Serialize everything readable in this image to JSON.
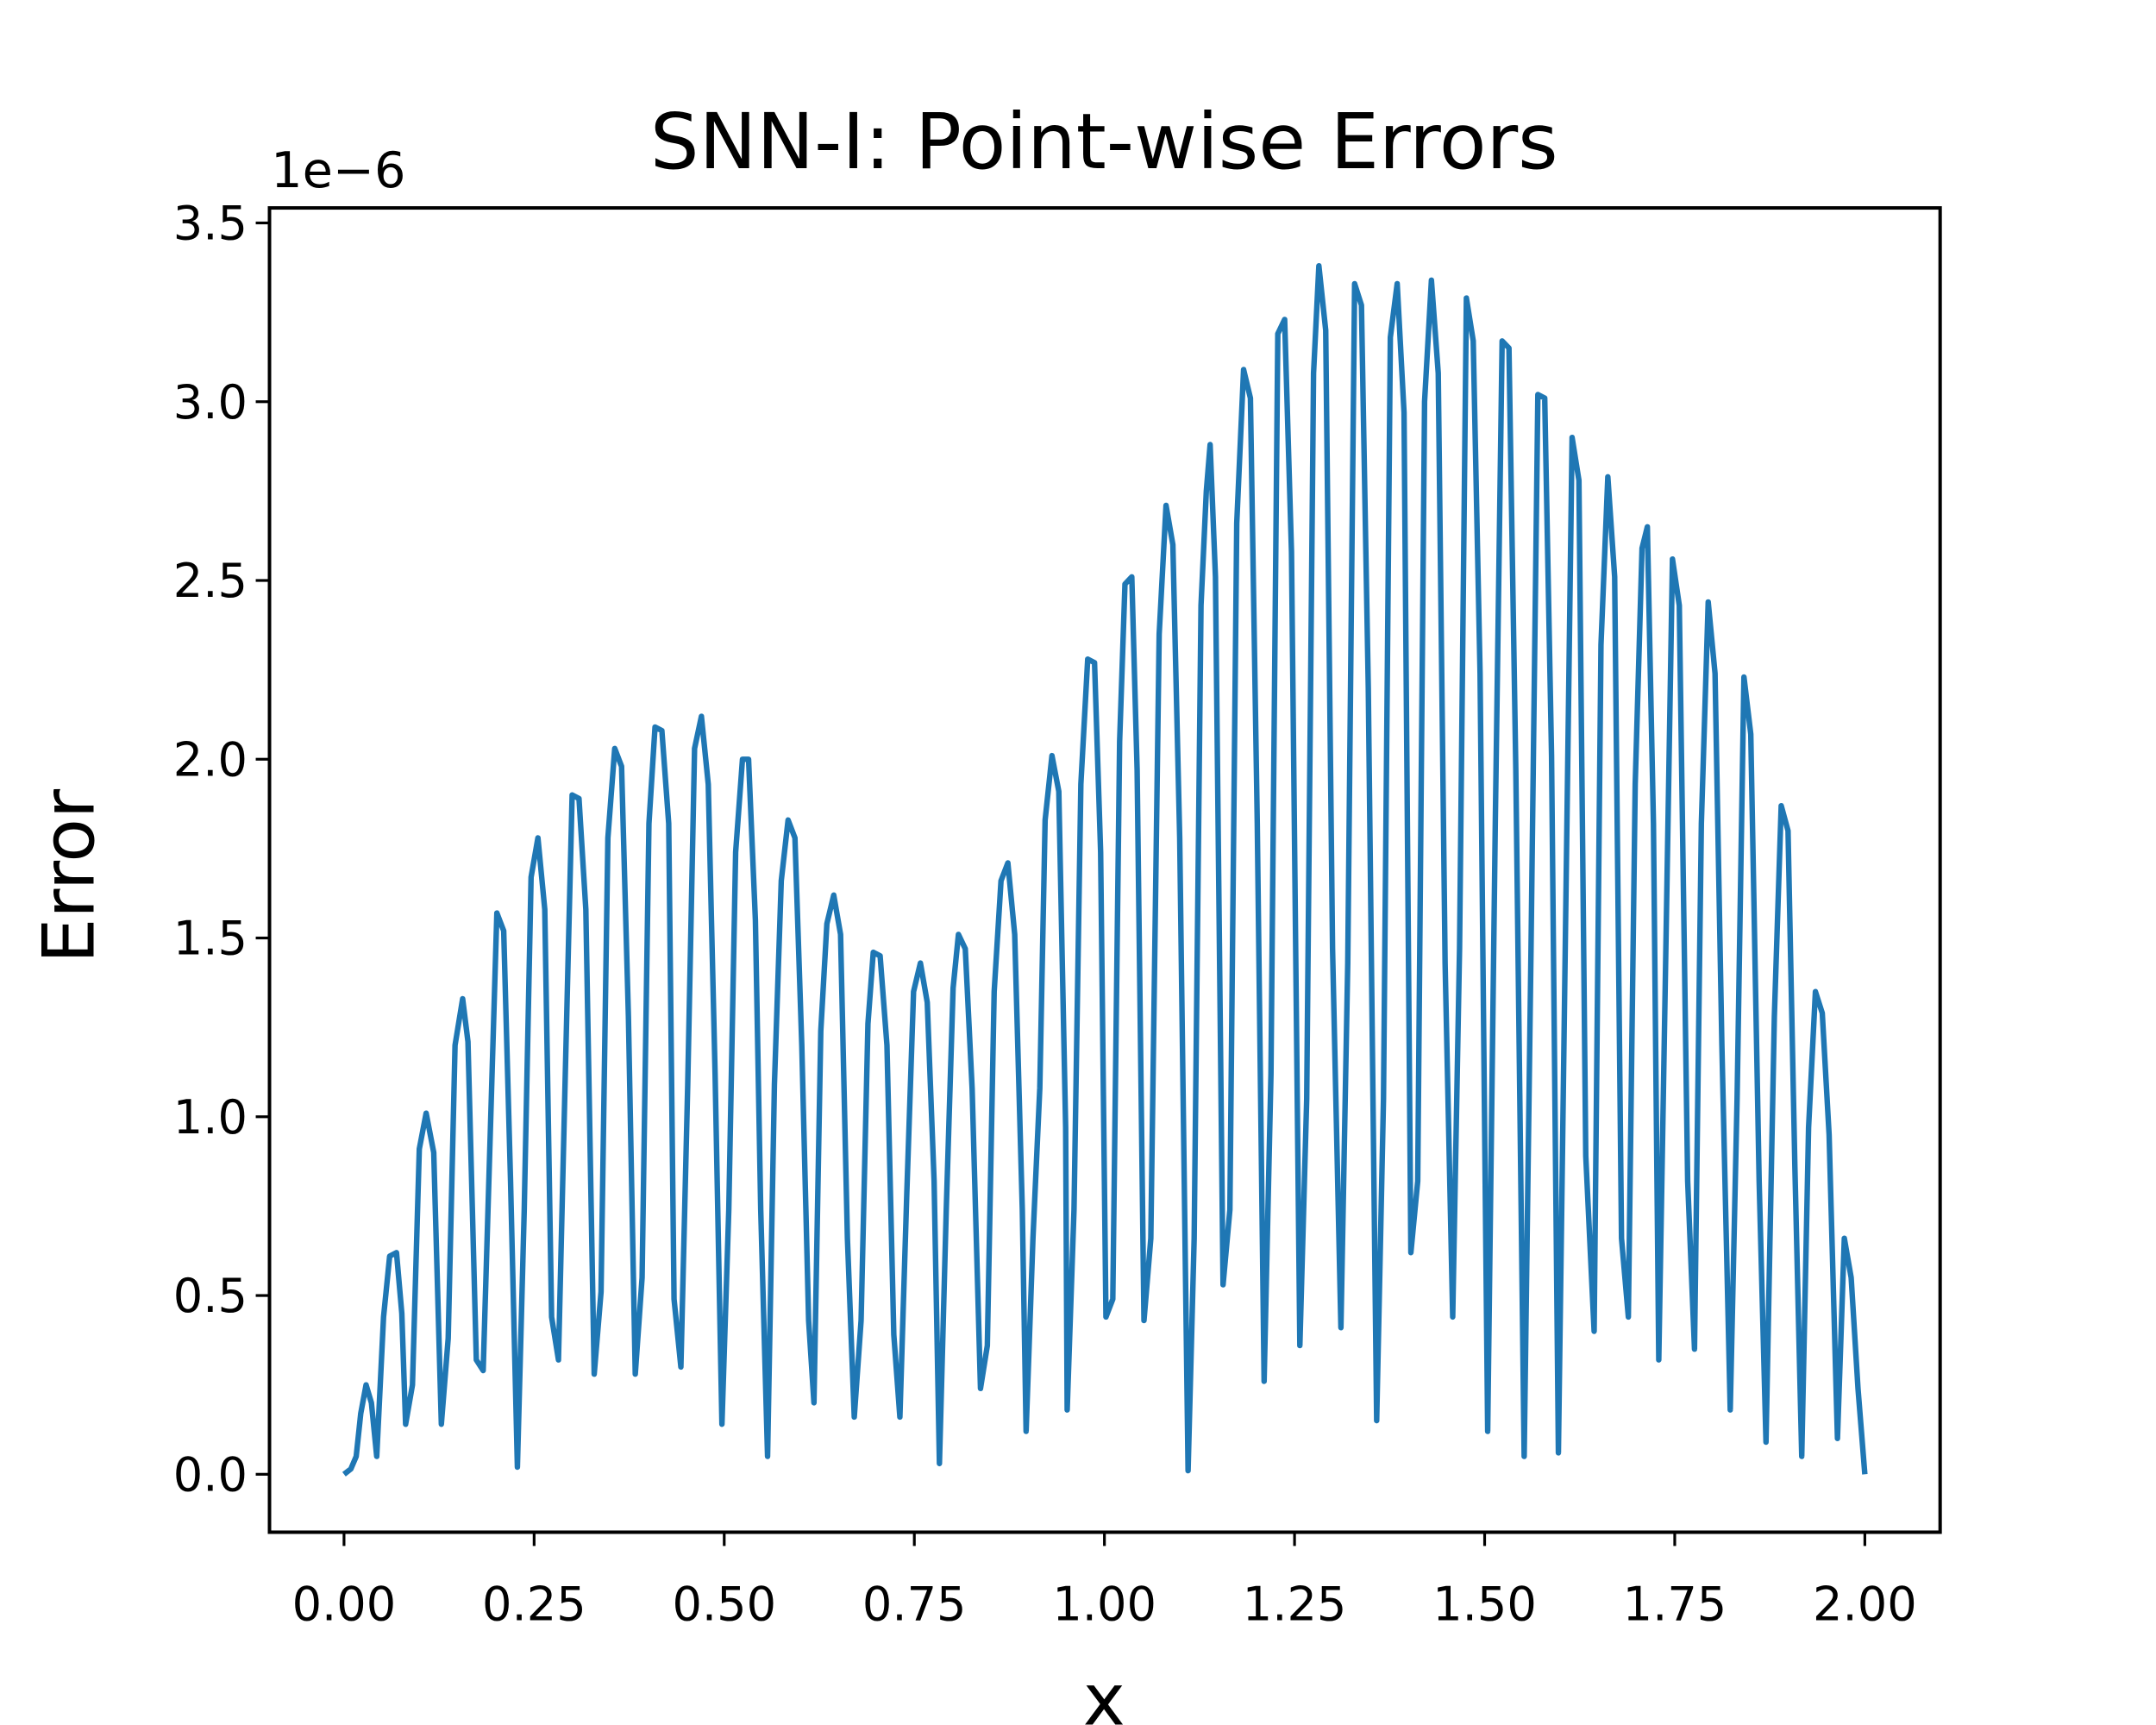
{
  "chart_data": {
    "type": "line",
    "title": "SNN-I: Point-wise Errors",
    "xlabel": "x",
    "ylabel": "Error",
    "y_offset_label": "1e−6",
    "color": "#1f77b4",
    "xlim": [
      -0.098,
      2.099
    ],
    "ylim": [
      -0.162,
      3.542
    ],
    "xticks": [
      {
        "value": 0,
        "label": "0.00"
      },
      {
        "value": 0.25,
        "label": "0.25"
      },
      {
        "value": 0.5,
        "label": "0.50"
      },
      {
        "value": 0.75,
        "label": "0.75"
      },
      {
        "value": 1,
        "label": "1.00"
      },
      {
        "value": 1.25,
        "label": "1.25"
      },
      {
        "value": 1.5,
        "label": "1.50"
      },
      {
        "value": 1.75,
        "label": "1.75"
      },
      {
        "value": 2,
        "label": "2.00"
      }
    ],
    "yticks": [
      {
        "value": 0,
        "label": "0.0"
      },
      {
        "value": 0.5,
        "label": "0.5"
      },
      {
        "value": 1,
        "label": "1.0"
      },
      {
        "value": 1.5,
        "label": "1.5"
      },
      {
        "value": 2,
        "label": "2.0"
      },
      {
        "value": 2.5,
        "label": "2.5"
      },
      {
        "value": 3,
        "label": "3.0"
      },
      {
        "value": 3.5,
        "label": "3.5"
      }
    ],
    "x": [
      0,
      0.009,
      0.016,
      0.022,
      0.029,
      0.036,
      0.043,
      0.052,
      0.06,
      0.069,
      0.076,
      0.081,
      0.09,
      0.099,
      0.108,
      0.118,
      0.128,
      0.137,
      0.146,
      0.156,
      0.163,
      0.174,
      0.183,
      0.192,
      0.201,
      0.21,
      0.219,
      0.228,
      0.237,
      0.246,
      0.255,
      0.264,
      0.273,
      0.282,
      0.291,
      0.3,
      0.309,
      0.318,
      0.329,
      0.338,
      0.347,
      0.356,
      0.365,
      0.374,
      0.383,
      0.392,
      0.401,
      0.409,
      0.418,
      0.427,
      0.434,
      0.443,
      0.452,
      0.461,
      0.47,
      0.479,
      0.488,
      0.497,
      0.506,
      0.515,
      0.524,
      0.532,
      0.541,
      0.548,
      0.557,
      0.566,
      0.575,
      0.584,
      0.593,
      0.602,
      0.611,
      0.618,
      0.627,
      0.635,
      0.644,
      0.653,
      0.662,
      0.671,
      0.68,
      0.689,
      0.696,
      0.705,
      0.714,
      0.723,
      0.731,
      0.74,
      0.749,
      0.758,
      0.767,
      0.776,
      0.783,
      0.792,
      0.801,
      0.808,
      0.817,
      0.826,
      0.837,
      0.846,
      0.855,
      0.864,
      0.873,
      0.882,
      0.892,
      0.897,
      0.906,
      0.915,
      0.922,
      0.931,
      0.94,
      0.949,
      0.951,
      0.96,
      0.969,
      0.978,
      0.987,
      0.995,
      1.002,
      1.011,
      1.02,
      1.027,
      1.036,
      1.043,
      1.052,
      1.061,
      1.072,
      1.081,
      1.09,
      1.099,
      1.11,
      1.118,
      1.127,
      1.134,
      1.139,
      1.146,
      1.156,
      1.165,
      1.174,
      1.183,
      1.192,
      1.201,
      1.21,
      1.219,
      1.228,
      1.237,
      1.246,
      1.257,
      1.266,
      1.275,
      1.282,
      1.291,
      1.3,
      1.311,
      1.32,
      1.329,
      1.338,
      1.347,
      1.358,
      1.367,
      1.376,
      1.385,
      1.394,
      1.403,
      1.412,
      1.421,
      1.43,
      1.439,
      1.448,
      1.458,
      1.467,
      1.476,
      1.485,
      1.494,
      1.504,
      1.514,
      1.523,
      1.532,
      1.541,
      1.552,
      1.561,
      1.57,
      1.579,
      1.588,
      1.597,
      1.606,
      1.615,
      1.624,
      1.633,
      1.644,
      1.653,
      1.662,
      1.671,
      1.68,
      1.689,
      1.698,
      1.707,
      1.714,
      1.722,
      1.729,
      1.738,
      1.747,
      1.756,
      1.767,
      1.776,
      1.785,
      1.794,
      1.803,
      1.812,
      1.823,
      1.832,
      1.841,
      1.85,
      1.861,
      1.87,
      1.881,
      1.89,
      1.899,
      1.908,
      1.917,
      1.926,
      1.935,
      1.944,
      1.953,
      1.964,
      1.973,
      1.982,
      1.991,
      2.0
    ],
    "values": [
      0,
      0.015,
      0.05,
      0.17,
      0.25,
      0.2,
      0.05,
      0.44,
      0.61,
      0.62,
      0.45,
      0.14,
      0.25,
      0.91,
      1.01,
      0.9,
      0.14,
      0.38,
      1.2,
      1.33,
      1.21,
      0.32,
      0.29,
      0.93,
      1.57,
      1.52,
      0.82,
      0.02,
      0.74,
      1.67,
      1.78,
      1.58,
      0.44,
      0.32,
      1.12,
      1.9,
      1.89,
      1.58,
      0.28,
      0.51,
      1.78,
      2.03,
      1.98,
      1.28,
      0.28,
      0.55,
      1.82,
      2.09,
      2.08,
      1.82,
      0.49,
      0.3,
      1.09,
      2.03,
      2.12,
      1.93,
      1.12,
      0.14,
      0.74,
      1.74,
      2.0,
      2.0,
      1.55,
      0.74,
      0.05,
      1.09,
      1.66,
      1.83,
      1.78,
      1.2,
      0.43,
      0.2,
      1.24,
      1.54,
      1.62,
      1.51,
      0.66,
      0.16,
      0.43,
      1.26,
      1.46,
      1.45,
      1.2,
      0.39,
      0.16,
      0.78,
      1.35,
      1.43,
      1.32,
      0.82,
      0.03,
      0.74,
      1.36,
      1.51,
      1.47,
      1.08,
      0.24,
      0.36,
      1.35,
      1.66,
      1.71,
      1.51,
      0.74,
      0.12,
      0.66,
      1.08,
      1.83,
      2.01,
      1.91,
      0.97,
      0.18,
      0.74,
      1.93,
      2.28,
      2.27,
      1.74,
      0.44,
      0.49,
      2.05,
      2.49,
      2.51,
      1.97,
      0.43,
      0.66,
      2.35,
      2.71,
      2.6,
      1.78,
      0.01,
      0.66,
      2.43,
      2.75,
      2.88,
      2.51,
      0.53,
      0.74,
      2.66,
      3.09,
      3.01,
      1.82,
      0.26,
      1.12,
      3.19,
      3.23,
      2.58,
      0.36,
      1.05,
      3.08,
      3.38,
      3.2,
      1.47,
      0.41,
      1.43,
      3.33,
      3.27,
      2.2,
      0.15,
      1.05,
      3.18,
      3.33,
      2.97,
      0.62,
      0.82,
      3.0,
      3.34,
      3.08,
      1.43,
      0.44,
      1.47,
      3.29,
      3.17,
      2.24,
      0.12,
      1.82,
      3.17,
      3.15,
      1.97,
      0.05,
      1.47,
      3.02,
      3.01,
      2.01,
      0.06,
      1.47,
      2.9,
      2.78,
      0.89,
      0.4,
      2.32,
      2.79,
      2.51,
      0.66,
      0.44,
      1.93,
      2.59,
      2.65,
      1.82,
      0.32,
      1.43,
      2.56,
      2.43,
      0.82,
      0.35,
      1.82,
      2.44,
      2.24,
      1.2,
      0.18,
      1.05,
      2.23,
      2.07,
      0.82,
      0.09,
      1.28,
      1.87,
      1.8,
      0.86,
      0.05,
      0.97,
      1.35,
      1.29,
      0.95,
      0.1,
      0.66,
      0.55,
      0.24,
      0
    ]
  }
}
